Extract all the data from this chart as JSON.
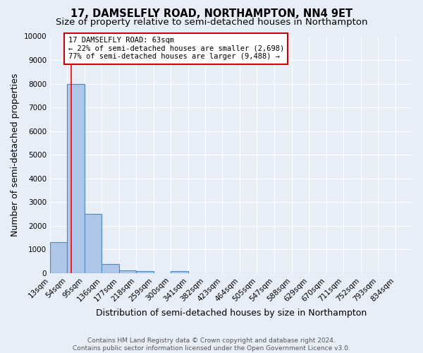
{
  "title": "17, DAMSELFLY ROAD, NORTHAMPTON, NN4 9ET",
  "subtitle": "Size of property relative to semi-detached houses in Northampton",
  "xlabel": "Distribution of semi-detached houses by size in Northampton",
  "ylabel": "Number of semi-detached properties",
  "bin_labels": [
    "13sqm",
    "54sqm",
    "95sqm",
    "136sqm",
    "177sqm",
    "218sqm",
    "259sqm",
    "300sqm",
    "341sqm",
    "382sqm",
    "423sqm",
    "464sqm",
    "505sqm",
    "547sqm",
    "588sqm",
    "629sqm",
    "670sqm",
    "711sqm",
    "752sqm",
    "793sqm",
    "834sqm"
  ],
  "bar_values": [
    1300,
    8000,
    2500,
    400,
    130,
    100,
    0,
    100,
    0,
    0,
    0,
    0,
    0,
    0,
    0,
    0,
    0,
    0,
    0,
    0
  ],
  "bar_color": "#aec6e8",
  "bar_edgecolor": "#4d8ac4",
  "bar_linewidth": 0.8,
  "red_line_x": 63,
  "bin_edges": [
    13,
    54,
    95,
    136,
    177,
    218,
    259,
    300,
    341,
    382,
    423,
    464,
    505,
    547,
    588,
    629,
    670,
    711,
    752,
    793,
    834
  ],
  "bin_width": 41,
  "annotation_text": "17 DAMSELFLY ROAD: 63sqm\n← 22% of semi-detached houses are smaller (2,698)\n77% of semi-detached houses are larger (9,488) →",
  "annotation_box_facecolor": "#ffffff",
  "annotation_box_edgecolor": "#cc0000",
  "ylim": [
    0,
    10000
  ],
  "yticks": [
    0,
    1000,
    2000,
    3000,
    4000,
    5000,
    6000,
    7000,
    8000,
    9000,
    10000
  ],
  "background_color": "#e8eef8",
  "grid_color": "#ffffff",
  "footer_line1": "Contains HM Land Registry data © Crown copyright and database right 2024.",
  "footer_line2": "Contains public sector information licensed under the Open Government Licence v3.0.",
  "title_fontsize": 10.5,
  "subtitle_fontsize": 9.5,
  "axis_label_fontsize": 9,
  "tick_fontsize": 7.5,
  "annotation_fontsize": 7.5,
  "footer_fontsize": 6.5
}
